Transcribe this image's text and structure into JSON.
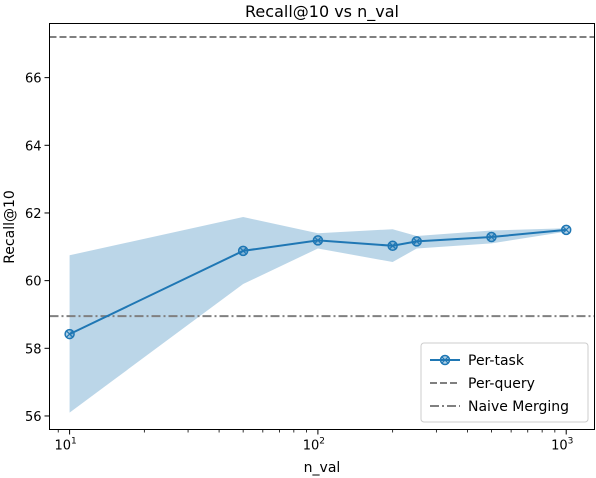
{
  "chart_data": {
    "type": "line",
    "title": "Recall@10 vs n_val",
    "xlabel": "n_val",
    "ylabel": "Recall@10",
    "xscale": "log",
    "xlim": [
      8.3,
      1300
    ],
    "ylim": [
      55.6,
      67.6
    ],
    "x_ticks": [
      {
        "value": 10,
        "base": "10",
        "exp": "1"
      },
      {
        "value": 100,
        "base": "10",
        "exp": "2"
      },
      {
        "value": 1000,
        "base": "10",
        "exp": "3"
      }
    ],
    "y_ticks": [
      56,
      58,
      60,
      62,
      64,
      66
    ],
    "series": [
      {
        "name": "Per-task",
        "color": "#1f77b4",
        "marker": "circle-x",
        "x": [
          10,
          50,
          100,
          200,
          250,
          500,
          1000
        ],
        "y": [
          58.42,
          60.88,
          61.19,
          61.03,
          61.16,
          61.29,
          61.5
        ],
        "lower": [
          56.1,
          59.9,
          60.95,
          60.55,
          60.95,
          61.1,
          61.45
        ],
        "upper": [
          60.75,
          61.88,
          61.4,
          61.52,
          61.32,
          61.48,
          61.55
        ]
      }
    ],
    "reference_lines": [
      {
        "name": "Per-query",
        "y": 67.2,
        "style": "dashed",
        "color": "#808080"
      },
      {
        "name": "Naive Merging",
        "y": 58.95,
        "style": "dashdot",
        "color": "#808080"
      }
    ],
    "band_color": "#1f77b4",
    "legend_position": "lower-right",
    "grid": false
  }
}
